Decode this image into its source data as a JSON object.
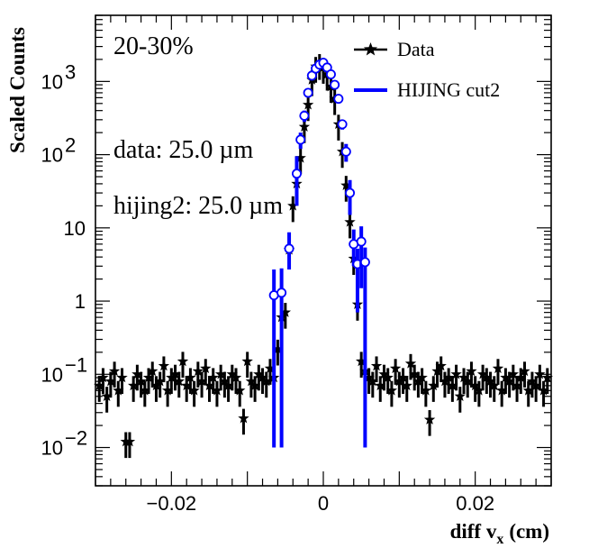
{
  "chart_data": {
    "type": "scatter",
    "title": "",
    "xlabel": "diff v",
    "xlabel_sub": "x",
    "xlabel_unit": "(cm)",
    "ylabel": "Scaled Counts",
    "xlim": [
      -0.03,
      0.03
    ],
    "ylim": [
      0.003,
      8000
    ],
    "yscale": "log",
    "grid": false,
    "legend_position": "top-right",
    "x_ticks": [
      {
        "value": -0.02,
        "label": "−0.02"
      },
      {
        "value": 0,
        "label": "0"
      },
      {
        "value": 0.02,
        "label": "0.02"
      }
    ],
    "y_ticks": [
      {
        "value": 0.01,
        "base": "10",
        "exp": "−2"
      },
      {
        "value": 0.1,
        "base": "10",
        "exp": "−1"
      },
      {
        "value": 1,
        "base": "1",
        "exp": ""
      },
      {
        "value": 10,
        "base": "10",
        "exp": ""
      },
      {
        "value": 100,
        "base": "10",
        "exp": "2"
      },
      {
        "value": 1000,
        "base": "10",
        "exp": "3"
      }
    ],
    "annotations": [
      {
        "text": "20-30%"
      },
      {
        "text": "data: 25.0 µm"
      },
      {
        "text": "hijing2: 25.0 µm"
      }
    ],
    "series": [
      {
        "name": "Data",
        "color": "#000000",
        "marker": "star",
        "x": [
          -0.0295,
          -0.029,
          -0.0285,
          -0.028,
          -0.0275,
          -0.027,
          -0.0265,
          -0.026,
          -0.0255,
          -0.025,
          -0.0245,
          -0.024,
          -0.0235,
          -0.023,
          -0.0225,
          -0.022,
          -0.0215,
          -0.021,
          -0.0205,
          -0.02,
          -0.0195,
          -0.019,
          -0.0185,
          -0.018,
          -0.0175,
          -0.017,
          -0.0165,
          -0.016,
          -0.0155,
          -0.015,
          -0.0145,
          -0.014,
          -0.0135,
          -0.013,
          -0.0125,
          -0.012,
          -0.0115,
          -0.011,
          -0.0105,
          -0.01,
          -0.0095,
          -0.009,
          -0.0085,
          -0.008,
          -0.0075,
          -0.007,
          -0.0065,
          -0.006,
          -0.0055,
          -0.005,
          -0.0045,
          -0.004,
          -0.0035,
          -0.003,
          -0.0025,
          -0.002,
          -0.0015,
          -0.001,
          -0.0005,
          0,
          0.0005,
          0.001,
          0.0015,
          0.002,
          0.0025,
          0.003,
          0.0035,
          0.004,
          0.0045,
          0.005,
          0.0055,
          0.006,
          0.0065,
          0.007,
          0.0075,
          0.008,
          0.0085,
          0.009,
          0.0095,
          0.01,
          0.0105,
          0.011,
          0.0115,
          0.012,
          0.0125,
          0.013,
          0.0135,
          0.014,
          0.0145,
          0.015,
          0.0155,
          0.016,
          0.0165,
          0.017,
          0.0175,
          0.018,
          0.0185,
          0.019,
          0.0195,
          0.02,
          0.0205,
          0.021,
          0.0215,
          0.022,
          0.0225,
          0.023,
          0.0235,
          0.024,
          0.0245,
          0.025,
          0.0255,
          0.026,
          0.0265,
          0.027,
          0.0275,
          0.028,
          0.0285,
          0.029,
          0.0295
        ],
        "y": [
          0.07,
          0.09,
          0.05,
          0.08,
          0.11,
          0.06,
          0.09,
          0.012,
          0.012,
          0.07,
          0.1,
          0.08,
          0.06,
          0.09,
          0.11,
          0.07,
          0.08,
          0.13,
          0.06,
          0.09,
          0.1,
          0.08,
          0.15,
          0.07,
          0.09,
          0.06,
          0.11,
          0.08,
          0.12,
          0.07,
          0.09,
          0.06,
          0.1,
          0.08,
          0.07,
          0.1,
          0.09,
          0.06,
          0.025,
          0.15,
          0.08,
          0.07,
          0.1,
          0.09,
          0.08,
          0.12,
          0.09,
          0.22,
          0.6,
          0.7,
          5.0,
          20,
          40,
          90,
          240,
          480,
          1050,
          1600,
          1750,
          1550,
          1250,
          850,
          580,
          260,
          110,
          38,
          12,
          3.8,
          0.9,
          0.15,
          0.11,
          0.09,
          0.08,
          0.13,
          0.07,
          0.1,
          0.09,
          0.06,
          0.12,
          0.08,
          0.09,
          0.07,
          0.14,
          0.1,
          0.08,
          0.09,
          0.06,
          0.024,
          0.07,
          0.11,
          0.13,
          0.08,
          0.09,
          0.07,
          0.1,
          0.05,
          0.09,
          0.08,
          0.11,
          0.07,
          0.06,
          0.1,
          0.09,
          0.08,
          0.07,
          0.12,
          0.06,
          0.09,
          0.08,
          0.1,
          0.07,
          0.09,
          0.11,
          0.06,
          0.08,
          0.07,
          0.1,
          0.06,
          0.09
        ],
        "yerr_lo_frac": 0.4,
        "yerr_hi_frac": 0.35
      },
      {
        "name": "HIJING cut2",
        "color": "#0000ff",
        "marker": "open-circle",
        "x": [
          -0.0065,
          -0.0055,
          -0.0045,
          -0.0035,
          -0.003,
          -0.0025,
          -0.002,
          -0.0015,
          -0.001,
          -0.0005,
          0,
          0.0005,
          0.001,
          0.0015,
          0.002,
          0.0025,
          0.003,
          0.0035,
          0.004,
          0.0045,
          0.005,
          0.0055
        ],
        "y": [
          1.2,
          1.3,
          5.2,
          55,
          160,
          340,
          700,
          1200,
          1500,
          1700,
          1800,
          1550,
          1250,
          900,
          580,
          260,
          110,
          30,
          6.0,
          3.2,
          6.5,
          3.4
        ],
        "yerr_lo": [
          1.19,
          1.29,
          2.5,
          35,
          40,
          60,
          80,
          100,
          110,
          120,
          120,
          110,
          100,
          80,
          60,
          40,
          30,
          15,
          3.0,
          2.5,
          5.0,
          3.39
        ],
        "yerr_hi": [
          1.5,
          1.5,
          3.5,
          40,
          40,
          60,
          80,
          100,
          110,
          120,
          120,
          110,
          100,
          80,
          60,
          40,
          30,
          15,
          3.5,
          2.0,
          4.0,
          2.0
        ]
      }
    ]
  }
}
